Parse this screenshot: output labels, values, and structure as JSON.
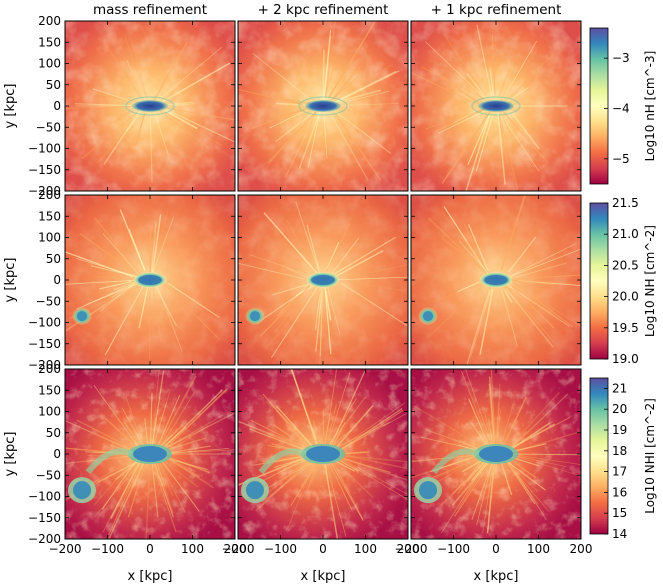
{
  "chart_data": {
    "type": "heatmap",
    "columns": [
      "mass refinement",
      "+ 2 kpc refinement",
      "+ 1 kpc refinement"
    ],
    "rows": [
      {
        "quantity": "n_H",
        "colorbar_label": "Log10 nH [cm^-3]",
        "cbar_range": [
          -5.5,
          -2.4
        ],
        "cbar_ticks": [
          -3,
          -4,
          -5
        ],
        "cbar_tick_labels": [
          "−3",
          "−4",
          "−5"
        ]
      },
      {
        "quantity": "N_H",
        "colorbar_label": "Log10 NH [cm^-2]",
        "cbar_range": [
          19.0,
          21.5
        ],
        "cbar_ticks": [
          21.5,
          21.0,
          20.5,
          20.0,
          19.5,
          19.0
        ],
        "cbar_tick_labels": [
          "21.5",
          "21.0",
          "20.5",
          "20.0",
          "19.5",
          "19.0"
        ]
      },
      {
        "quantity": "N_HI",
        "colorbar_label": "Log10 NHI [cm^-2]",
        "cbar_range": [
          14,
          21.5
        ],
        "cbar_ticks": [
          21,
          20,
          19,
          18,
          17,
          16,
          15,
          14
        ],
        "cbar_tick_labels": [
          "21",
          "20",
          "19",
          "18",
          "17",
          "16",
          "15",
          "14"
        ]
      }
    ],
    "xlabel": "x [kpc]",
    "ylabel": "y [kpc]",
    "xlim": [
      -200,
      200
    ],
    "ylim": [
      -200,
      200
    ],
    "x_ticks": [
      -200,
      -100,
      0,
      100,
      200
    ],
    "x_tick_labels": [
      "−200",
      "−100",
      "0",
      "100",
      "200"
    ],
    "y_ticks": [
      200,
      150,
      100,
      50,
      0,
      -50,
      -100,
      -150,
      -200
    ],
    "y_tick_labels": [
      "200",
      "150",
      "100",
      "50",
      "0",
      "−50",
      "−100",
      "−150",
      "−200"
    ],
    "features": {
      "main_disk_center": [
        0,
        0
      ],
      "satellite_center": [
        -160,
        -85
      ]
    }
  },
  "colors": {
    "colormap": [
      "#9e0142",
      "#d53e4f",
      "#f46d43",
      "#fdae61",
      "#fee08b",
      "#ffffbf",
      "#e6f598",
      "#abdda4",
      "#66c2a5",
      "#3288bd",
      "#5e4fa2"
    ]
  }
}
